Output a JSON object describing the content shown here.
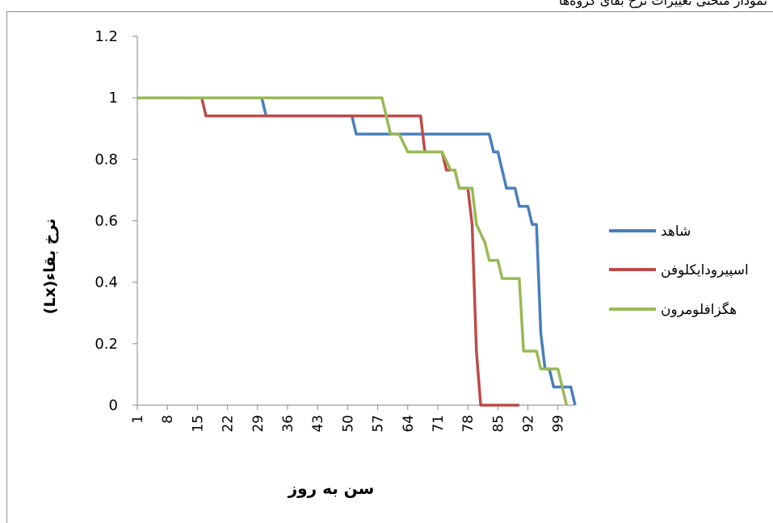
{
  "page": {
    "caption_fragment": "نمودار منحنی تغییرات نرخ بقای گروه‌ها"
  },
  "chart_data": {
    "type": "line",
    "xlabel": "سن به روز",
    "ylabel": "نرخ بقاء(Lx)",
    "x_ticks": [
      "1",
      "8",
      "15",
      "22",
      "29",
      "36",
      "43",
      "50",
      "57",
      "64",
      "71",
      "78",
      "85",
      "92",
      "99"
    ],
    "y_ticks": [
      "0",
      "0.2",
      "0.4",
      "0.6",
      "0.8",
      "1",
      "1.2"
    ],
    "xlim": [
      1,
      103
    ],
    "ylim": [
      0,
      1.2
    ],
    "legend_position": "right",
    "grid": false,
    "series": [
      {
        "name": "شاهد",
        "color": "#4a7ebb",
        "points": [
          [
            1,
            1
          ],
          [
            30,
            1
          ],
          [
            31,
            0.941
          ],
          [
            51,
            0.941
          ],
          [
            52,
            0.882
          ],
          [
            83,
            0.882
          ],
          [
            84,
            0.824
          ],
          [
            85,
            0.824
          ],
          [
            86,
            0.765
          ],
          [
            87,
            0.706
          ],
          [
            89,
            0.706
          ],
          [
            90,
            0.647
          ],
          [
            92,
            0.647
          ],
          [
            93,
            0.588
          ],
          [
            94,
            0.588
          ],
          [
            95,
            0.235
          ],
          [
            96,
            0.118
          ],
          [
            97,
            0.118
          ],
          [
            98,
            0.059
          ],
          [
            102,
            0.059
          ],
          [
            103,
            0
          ]
        ]
      },
      {
        "name": "اسپیرودایکلوفن",
        "color": "#be4b48",
        "points": [
          [
            1,
            1
          ],
          [
            16,
            1
          ],
          [
            17,
            0.941
          ],
          [
            67,
            0.941
          ],
          [
            68,
            0.824
          ],
          [
            72,
            0.824
          ],
          [
            73,
            0.765
          ],
          [
            75,
            0.765
          ],
          [
            76,
            0.706
          ],
          [
            78,
            0.706
          ],
          [
            79,
            0.588
          ],
          [
            80,
            0.176
          ],
          [
            81,
            0
          ],
          [
            90,
            0
          ]
        ]
      },
      {
        "name": "هگزافلومرون",
        "color": "#98b954",
        "points": [
          [
            1,
            1
          ],
          [
            58,
            1
          ],
          [
            60,
            0.882
          ],
          [
            62,
            0.882
          ],
          [
            64,
            0.824
          ],
          [
            72,
            0.824
          ],
          [
            74,
            0.765
          ],
          [
            75,
            0.765
          ],
          [
            76,
            0.706
          ],
          [
            79,
            0.706
          ],
          [
            80,
            0.588
          ],
          [
            82,
            0.529
          ],
          [
            83,
            0.471
          ],
          [
            85,
            0.471
          ],
          [
            86,
            0.412
          ],
          [
            90,
            0.412
          ],
          [
            91,
            0.176
          ],
          [
            94,
            0.176
          ],
          [
            95,
            0.118
          ],
          [
            97,
            0.118
          ],
          [
            99,
            0.118
          ],
          [
            101,
            0
          ]
        ]
      }
    ]
  }
}
